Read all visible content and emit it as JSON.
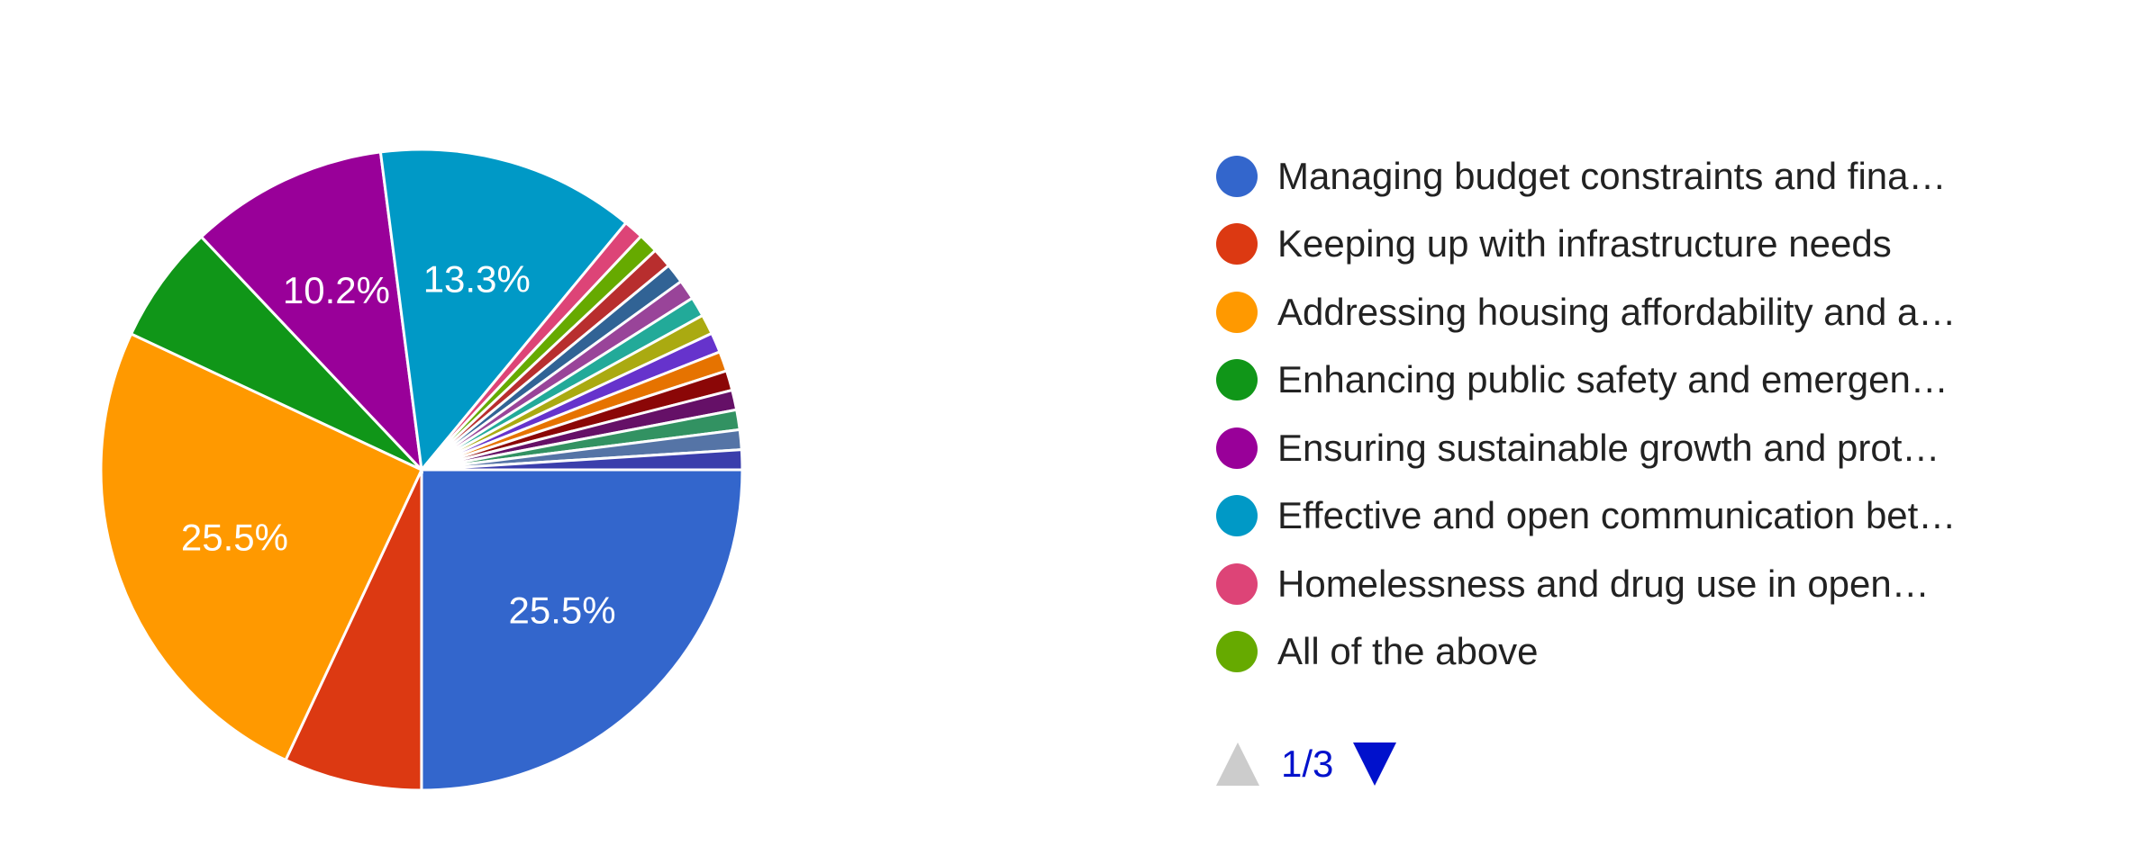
{
  "chart_data": {
    "type": "pie",
    "legend_position": "right",
    "categories": [
      "Managing budget constraints and fina…",
      "Keeping up with infrastructure needs",
      "Addressing housing affordability and a…",
      "Enhancing public safety and emergen…",
      "Ensuring sustainable growth and prot…",
      "Effective and open communication bet…",
      "Homelessness and drug use in open…",
      "All of the above",
      "",
      "",
      "",
      "",
      "",
      "",
      "",
      "",
      "",
      "",
      "",
      ""
    ],
    "values": [
      25.5,
      7.1,
      25.5,
      6.1,
      10.2,
      13.3,
      1.02,
      1.02,
      1.02,
      1.02,
      1.02,
      1.02,
      1.02,
      1.02,
      1.02,
      1.02,
      1.02,
      1.02,
      1.02,
      1.02
    ],
    "colors": [
      "#3366cc",
      "#dc3912",
      "#ff9900",
      "#109618",
      "#990099",
      "#0099c6",
      "#dd4477",
      "#66aa00",
      "#b82e2e",
      "#316395",
      "#994499",
      "#22aa99",
      "#aaaa11",
      "#6633cc",
      "#e67300",
      "#8b0707",
      "#651067",
      "#329262",
      "#5574a6",
      "#3b3eac"
    ],
    "data_labels": [
      "25.5%",
      "",
      "25.5%",
      "",
      "10.2%",
      "13.3%",
      "",
      "",
      "",
      "",
      "",
      "",
      "",
      "",
      "",
      "",
      "",
      "",
      "",
      ""
    ],
    "legend_visible_count": 8
  },
  "pager": {
    "text": "1/3",
    "up_icon": "triangle-up-icon",
    "down_icon": "triangle-down-icon",
    "up_color": "#cccccc",
    "down_color": "#0011cc"
  }
}
